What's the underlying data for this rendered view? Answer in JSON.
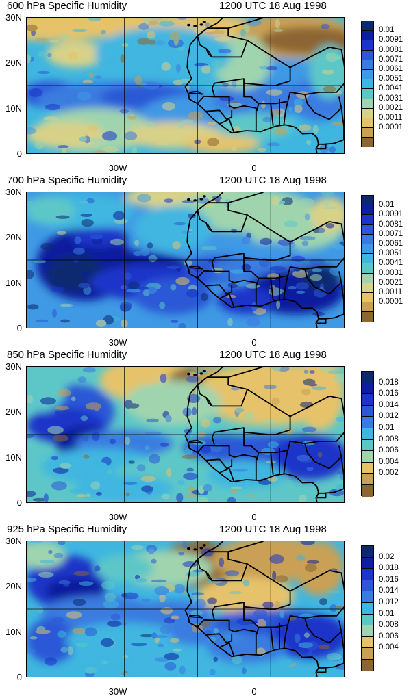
{
  "panels": [
    {
      "title": "600 hPa Specific Humidity",
      "time": "1200 UTC 18 Aug 1998",
      "y_ticks": [
        "30N",
        "20N",
        "10N",
        "0"
      ],
      "x_ticks": [
        "30W",
        "0"
      ],
      "colorbar_labels": [
        "0.01",
        "0.0091",
        "0.0081",
        "0.0071",
        "0.0061",
        "0.0051",
        "0.0041",
        "0.0031",
        "0.0021",
        "0.0011",
        "0.0001"
      ],
      "colorbar_colors": [
        "#0a2a70",
        "#0d1f9e",
        "#1a35c8",
        "#2c58d6",
        "#3a7be0",
        "#3f99e4",
        "#3fb6e0",
        "#5dc7c8",
        "#9fd4ae",
        "#d8d188",
        "#e6c36a",
        "#c9a055",
        "#8c6530"
      ]
    },
    {
      "title": "700 hPa Specific Humidity",
      "time": "1200 UTC 18 Aug 1998",
      "y_ticks": [
        "30N",
        "20N",
        "10N",
        "0"
      ],
      "x_ticks": [
        "30W",
        "0"
      ],
      "colorbar_labels": [
        "0.01",
        "0.0091",
        "0.0081",
        "0.0071",
        "0.0061",
        "0.0051",
        "0.0041",
        "0.0031",
        "0.0021",
        "0.0011",
        "0.0001"
      ],
      "colorbar_colors": [
        "#0a2a70",
        "#0d1f9e",
        "#1a35c8",
        "#2c58d6",
        "#3a7be0",
        "#3f99e4",
        "#3fb6e0",
        "#5dc7c8",
        "#9fd4ae",
        "#d8d188",
        "#e6c36a",
        "#c9a055",
        "#8c6530"
      ]
    },
    {
      "title": "850 hPa Specific Humidity",
      "time": "1200 UTC 18 Aug 1998",
      "y_ticks": [
        "30N",
        "20N",
        "10N",
        "0"
      ],
      "x_ticks": [
        "30W",
        "0"
      ],
      "colorbar_labels": [
        "0.018",
        "0.016",
        "0.014",
        "0.012",
        "0.01",
        "0.008",
        "0.006",
        "0.004",
        "0.002"
      ],
      "colorbar_colors": [
        "#0a2a70",
        "#0d1f9e",
        "#1a35c8",
        "#2c58d6",
        "#3a7be0",
        "#3fb6e0",
        "#5dc7c8",
        "#9fd4ae",
        "#e6c36a",
        "#c9a055",
        "#8c6530"
      ]
    },
    {
      "title": "925 hPa Specific Humidity",
      "time": "1200 UTC 18 Aug 1998",
      "y_ticks": [
        "30N",
        "20N",
        "10N",
        "0"
      ],
      "x_ticks": [
        "30W",
        "0"
      ],
      "colorbar_labels": [
        "0.02",
        "0.018",
        "0.016",
        "0.014",
        "0.012",
        "0.01",
        "0.008",
        "0.006",
        "0.004"
      ],
      "colorbar_colors": [
        "#0a2a70",
        "#0d1f9e",
        "#1a35c8",
        "#2c58d6",
        "#3a7be0",
        "#3fb6e0",
        "#5dc7c8",
        "#9fd4ae",
        "#e6c36a",
        "#c9a055",
        "#8c6530"
      ]
    }
  ]
}
